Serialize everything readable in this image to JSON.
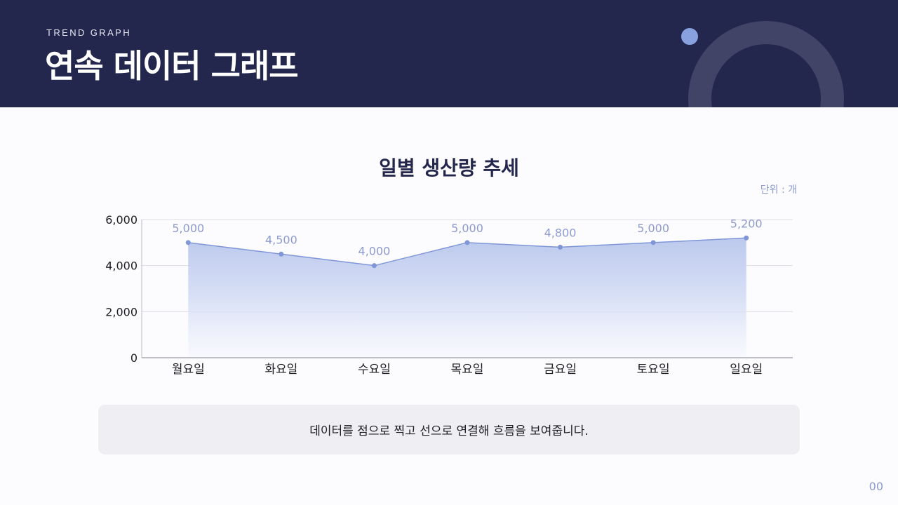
{
  "header": {
    "eyebrow": "TREND GRAPH",
    "title": "연속 데이터 그래프"
  },
  "chart": {
    "title": "일별 생산량 추세",
    "unit": "단위 : 개",
    "y_ticks": [
      "0",
      "2,000",
      "4,000",
      "6,000"
    ],
    "categories": [
      "월요일",
      "화요일",
      "수요일",
      "목요일",
      "금요일",
      "토요일",
      "일요일"
    ],
    "value_labels": [
      "5,000",
      "4,500",
      "4,000",
      "5,000",
      "4,800",
      "5,000",
      "5,200"
    ]
  },
  "caption": "데이터를 점으로 찍고 선으로 연결해 흐름을 보여줍니다.",
  "page_number": "00",
  "colors": {
    "header_bg": "#24274d",
    "accent": "#8aa1e0",
    "line": "#7f96d8",
    "label": "#8d9ad0"
  },
  "chart_data": {
    "type": "area",
    "title": "일별 생산량 추세",
    "xlabel": "",
    "ylabel": "",
    "unit": "개",
    "categories": [
      "월요일",
      "화요일",
      "수요일",
      "목요일",
      "금요일",
      "토요일",
      "일요일"
    ],
    "values": [
      5000,
      4500,
      4000,
      5000,
      4800,
      5000,
      5200
    ],
    "ylim": [
      0,
      6000
    ],
    "y_ticks": [
      0,
      2000,
      4000,
      6000
    ],
    "grid": true,
    "data_labels": true,
    "legend": null
  }
}
